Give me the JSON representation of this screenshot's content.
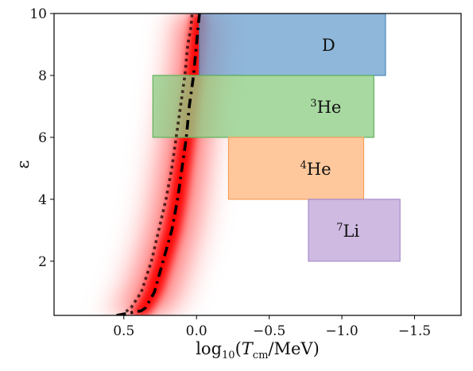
{
  "chart_data": {
    "type": "area",
    "xlabel": {
      "prefix": "log",
      "prefix_sub": "10",
      "open": "(",
      "var": "T",
      "var_sub": "cm",
      "unit": "/MeV)"
    },
    "ylabel": "ε",
    "x_inverted": true,
    "xlim": [
      0.98,
      -1.82
    ],
    "ylim": [
      0.25,
      10
    ],
    "x_ticks": [
      0.5,
      0.0,
      -0.5,
      -1.0,
      -1.5
    ],
    "x_tick_labels": [
      "0.5",
      "0.0",
      "−0.5",
      "−1.0",
      "−1.5"
    ],
    "y_ticks": [
      2,
      4,
      6,
      8,
      10
    ],
    "y_tick_labels": [
      "2",
      "4",
      "6",
      "8",
      "10"
    ],
    "grid": false,
    "legend": "none",
    "regions": [
      {
        "label_sup": "",
        "label": "D",
        "x_range": [
          -0.02,
          -1.3
        ],
        "y_range": [
          8,
          10
        ],
        "color": "#6fa3cf",
        "edge": "#4a86bd"
      },
      {
        "label_sup": "3",
        "label": "He",
        "x_range": [
          0.3,
          -1.22
        ],
        "y_range": [
          6,
          8
        ],
        "color": "#8fce86",
        "edge": "#5fb05a"
      },
      {
        "label_sup": "4",
        "label": "He",
        "x_range": [
          -0.22,
          -1.15
        ],
        "y_range": [
          4,
          6
        ],
        "color": "#ffb880",
        "edge": "#f7a05a"
      },
      {
        "label_sup": "7",
        "label": "Li",
        "x_range": [
          -0.77,
          -1.4
        ],
        "y_range": [
          2,
          4
        ],
        "color": "#c2a6da",
        "edge": "#a98ccb"
      }
    ],
    "band": {
      "color": "#ff0000",
      "x_center": [
        0.4,
        0.36,
        0.3,
        0.23,
        0.17,
        0.13,
        0.1,
        0.07,
        0.05,
        0.02,
        0.0,
        -0.01,
        -0.02
      ],
      "y": [
        0.25,
        0.5,
        1.0,
        2.0,
        3.0,
        4.0,
        5.0,
        6.0,
        7.0,
        8.0,
        9.0,
        9.5,
        10.0
      ]
    },
    "series": [
      {
        "style": "dashdot",
        "color": "#000000",
        "x": [
          0.55,
          0.38,
          0.35,
          0.29,
          0.23,
          0.17,
          0.13,
          0.1,
          0.07,
          0.05,
          0.02,
          0.0,
          -0.01,
          -0.02
        ],
        "y": [
          0.25,
          0.4,
          0.5,
          1.0,
          2.0,
          3.0,
          4.0,
          5.0,
          6.0,
          7.0,
          8.0,
          9.0,
          9.5,
          10.0
        ]
      },
      {
        "style": "dotted",
        "color": "#1a0000",
        "x": [
          0.52,
          0.45,
          0.38,
          0.31,
          0.26,
          0.21,
          0.17,
          0.14,
          0.11,
          0.08,
          0.06,
          0.04,
          0.03
        ],
        "y": [
          0.25,
          0.5,
          1.0,
          2.0,
          3.0,
          4.0,
          5.0,
          6.0,
          7.0,
          8.0,
          9.0,
          9.5,
          10.0
        ]
      }
    ]
  }
}
